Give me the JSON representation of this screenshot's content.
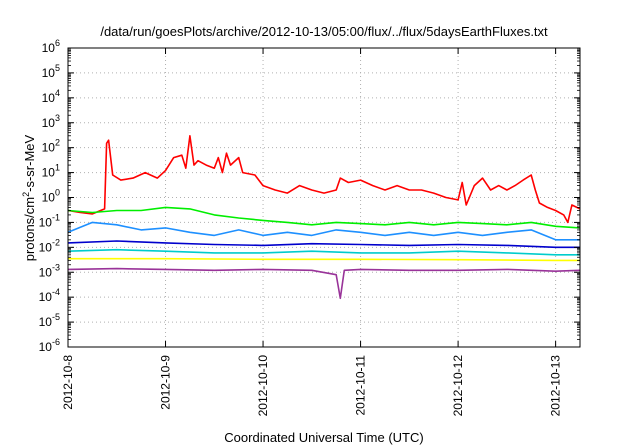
{
  "chart_data": {
    "type": "line",
    "title": "/data/run/goesPlots/archive/2012-10-13/05:00/flux/../flux/5daysEarthFluxes.txt",
    "xlabel": "Coordinated Universal Time (UTC)",
    "ylabel_main": "protons/cm",
    "ylabel_sup": "2",
    "ylabel_tail": "-s-sr-MeV",
    "y_scale": "log",
    "ylim": [
      1e-06,
      1000000.0
    ],
    "xlim": [
      "2012-10-08",
      "2012-10-13 06:00"
    ],
    "grid": true,
    "legend": "none",
    "x_tick_labels": [
      "2012-10-8",
      "2012-10-9",
      "2012-10-10",
      "2012-10-11",
      "2012-10-12",
      "2012-10-13"
    ],
    "y_ticks": [
      {
        "base": "10",
        "exp": "6"
      },
      {
        "base": "10",
        "exp": "5"
      },
      {
        "base": "10",
        "exp": "4"
      },
      {
        "base": "10",
        "exp": "3"
      },
      {
        "base": "10",
        "exp": "2"
      },
      {
        "base": "10",
        "exp": "1"
      },
      {
        "base": "10",
        "exp": "0"
      },
      {
        "base": "10",
        "exp": "-1"
      },
      {
        "base": "10",
        "exp": "-2"
      },
      {
        "base": "10",
        "exp": "-3"
      },
      {
        "base": "10",
        "exp": "-4"
      },
      {
        "base": "10",
        "exp": "-5"
      },
      {
        "base": "10",
        "exp": "-6"
      }
    ],
    "series": [
      {
        "color": "#ff0000",
        "points": [
          [
            "2012-10-08 00:00",
            0.3
          ],
          [
            "2012-10-08 03:00",
            0.25
          ],
          [
            "2012-10-08 06:00",
            0.22
          ],
          [
            "2012-10-08 09:00",
            0.35
          ],
          [
            "2012-10-08 09:30",
            150
          ],
          [
            "2012-10-08 10:00",
            200
          ],
          [
            "2012-10-08 11:00",
            8
          ],
          [
            "2012-10-08 13:00",
            5
          ],
          [
            "2012-10-08 16:00",
            6
          ],
          [
            "2012-10-08 19:00",
            10
          ],
          [
            "2012-10-08 22:00",
            6
          ],
          [
            "2012-10-09 00:00",
            12
          ],
          [
            "2012-10-09 02:00",
            40
          ],
          [
            "2012-10-09 04:00",
            50
          ],
          [
            "2012-10-09 05:00",
            15
          ],
          [
            "2012-10-09 06:00",
            300
          ],
          [
            "2012-10-09 07:00",
            20
          ],
          [
            "2012-10-09 08:00",
            30
          ],
          [
            "2012-10-09 10:00",
            20
          ],
          [
            "2012-10-09 12:00",
            15
          ],
          [
            "2012-10-09 13:00",
            40
          ],
          [
            "2012-10-09 14:00",
            10
          ],
          [
            "2012-10-09 15:00",
            60
          ],
          [
            "2012-10-09 16:00",
            20
          ],
          [
            "2012-10-09 18:00",
            40
          ],
          [
            "2012-10-09 19:00",
            10
          ],
          [
            "2012-10-09 22:00",
            8
          ],
          [
            "2012-10-10 00:00",
            3
          ],
          [
            "2012-10-10 03:00",
            2
          ],
          [
            "2012-10-10 06:00",
            1.5
          ],
          [
            "2012-10-10 09:00",
            3
          ],
          [
            "2012-10-10 12:00",
            2
          ],
          [
            "2012-10-10 15:00",
            1.5
          ],
          [
            "2012-10-10 18:00",
            2
          ],
          [
            "2012-10-10 19:00",
            6
          ],
          [
            "2012-10-10 21:00",
            4
          ],
          [
            "2012-10-11 00:00",
            5
          ],
          [
            "2012-10-11 03:00",
            3
          ],
          [
            "2012-10-11 06:00",
            2
          ],
          [
            "2012-10-11 09:00",
            3
          ],
          [
            "2012-10-11 12:00",
            2
          ],
          [
            "2012-10-11 15:00",
            2
          ],
          [
            "2012-10-11 18:00",
            1.5
          ],
          [
            "2012-10-11 21:00",
            1
          ],
          [
            "2012-10-12 00:00",
            0.8
          ],
          [
            "2012-10-12 01:00",
            4
          ],
          [
            "2012-10-12 02:00",
            0.5
          ],
          [
            "2012-10-12 04:00",
            3
          ],
          [
            "2012-10-12 06:00",
            6
          ],
          [
            "2012-10-12 08:00",
            2
          ],
          [
            "2012-10-12 10:00",
            3
          ],
          [
            "2012-10-12 12:00",
            2
          ],
          [
            "2012-10-12 14:00",
            3
          ],
          [
            "2012-10-12 16:00",
            5
          ],
          [
            "2012-10-12 18:00",
            8
          ],
          [
            "2012-10-12 19:00",
            2
          ],
          [
            "2012-10-12 20:00",
            0.6
          ],
          [
            "2012-10-12 22:00",
            0.4
          ],
          [
            "2012-10-13 00:00",
            0.3
          ],
          [
            "2012-10-13 02:00",
            0.2
          ],
          [
            "2012-10-13 03:00",
            0.1
          ],
          [
            "2012-10-13 04:00",
            0.5
          ],
          [
            "2012-10-13 06:00",
            0.35
          ]
        ]
      },
      {
        "color": "#00ee00",
        "points": [
          [
            "2012-10-08 00:00",
            0.3
          ],
          [
            "2012-10-08 06:00",
            0.25
          ],
          [
            "2012-10-08 12:00",
            0.3
          ],
          [
            "2012-10-08 18:00",
            0.3
          ],
          [
            "2012-10-09 00:00",
            0.4
          ],
          [
            "2012-10-09 06:00",
            0.35
          ],
          [
            "2012-10-09 12:00",
            0.2
          ],
          [
            "2012-10-09 18:00",
            0.15
          ],
          [
            "2012-10-10 00:00",
            0.12
          ],
          [
            "2012-10-10 06:00",
            0.1
          ],
          [
            "2012-10-10 12:00",
            0.08
          ],
          [
            "2012-10-10 18:00",
            0.1
          ],
          [
            "2012-10-11 00:00",
            0.09
          ],
          [
            "2012-10-11 06:00",
            0.08
          ],
          [
            "2012-10-11 12:00",
            0.1
          ],
          [
            "2012-10-11 18:00",
            0.08
          ],
          [
            "2012-10-12 00:00",
            0.1
          ],
          [
            "2012-10-12 06:00",
            0.09
          ],
          [
            "2012-10-12 12:00",
            0.08
          ],
          [
            "2012-10-12 18:00",
            0.1
          ],
          [
            "2012-10-13 00:00",
            0.07
          ],
          [
            "2012-10-13 06:00",
            0.06
          ]
        ]
      },
      {
        "color": "#1e90ff",
        "points": [
          [
            "2012-10-08 00:00",
            0.04
          ],
          [
            "2012-10-08 06:00",
            0.1
          ],
          [
            "2012-10-08 12:00",
            0.08
          ],
          [
            "2012-10-08 18:00",
            0.05
          ],
          [
            "2012-10-09 00:00",
            0.06
          ],
          [
            "2012-10-09 06:00",
            0.04
          ],
          [
            "2012-10-09 12:00",
            0.03
          ],
          [
            "2012-10-09 18:00",
            0.05
          ],
          [
            "2012-10-10 00:00",
            0.03
          ],
          [
            "2012-10-10 06:00",
            0.04
          ],
          [
            "2012-10-10 12:00",
            0.03
          ],
          [
            "2012-10-10 18:00",
            0.05
          ],
          [
            "2012-10-11 00:00",
            0.04
          ],
          [
            "2012-10-11 06:00",
            0.03
          ],
          [
            "2012-10-11 12:00",
            0.04
          ],
          [
            "2012-10-11 18:00",
            0.03
          ],
          [
            "2012-10-12 00:00",
            0.04
          ],
          [
            "2012-10-12 06:00",
            0.03
          ],
          [
            "2012-10-12 12:00",
            0.04
          ],
          [
            "2012-10-12 18:00",
            0.05
          ],
          [
            "2012-10-13 00:00",
            0.02
          ],
          [
            "2012-10-13 06:00",
            0.02
          ]
        ]
      },
      {
        "color": "#00cccc",
        "points": [
          [
            "2012-10-08 00:00",
            0.007
          ],
          [
            "2012-10-08 12:00",
            0.008
          ],
          [
            "2012-10-09 00:00",
            0.007
          ],
          [
            "2012-10-09 12:00",
            0.006
          ],
          [
            "2012-10-10 00:00",
            0.006
          ],
          [
            "2012-10-10 12:00",
            0.007
          ],
          [
            "2012-10-11 00:00",
            0.006
          ],
          [
            "2012-10-11 12:00",
            0.006
          ],
          [
            "2012-10-12 00:00",
            0.007
          ],
          [
            "2012-10-12 12:00",
            0.006
          ],
          [
            "2012-10-13 00:00",
            0.005
          ],
          [
            "2012-10-13 06:00",
            0.005
          ]
        ]
      },
      {
        "color": "#0000cc",
        "points": [
          [
            "2012-10-08 00:00",
            0.015
          ],
          [
            "2012-10-08 12:00",
            0.018
          ],
          [
            "2012-10-09 00:00",
            0.015
          ],
          [
            "2012-10-09 12:00",
            0.013
          ],
          [
            "2012-10-10 00:00",
            0.012
          ],
          [
            "2012-10-10 12:00",
            0.014
          ],
          [
            "2012-10-11 00:00",
            0.013
          ],
          [
            "2012-10-11 12:00",
            0.012
          ],
          [
            "2012-10-12 00:00",
            0.013
          ],
          [
            "2012-10-12 12:00",
            0.012
          ],
          [
            "2012-10-13 00:00",
            0.01
          ],
          [
            "2012-10-13 06:00",
            0.01
          ]
        ]
      },
      {
        "color": "#ffff00",
        "points": [
          [
            "2012-10-08 00:00",
            0.0035
          ],
          [
            "2012-10-09 00:00",
            0.0035
          ],
          [
            "2012-10-10 00:00",
            0.0033
          ],
          [
            "2012-10-11 00:00",
            0.0033
          ],
          [
            "2012-10-12 00:00",
            0.0032
          ],
          [
            "2012-10-13 00:00",
            0.003
          ],
          [
            "2012-10-13 06:00",
            0.003
          ]
        ]
      },
      {
        "color": "#993399",
        "points": [
          [
            "2012-10-08 00:00",
            0.0013
          ],
          [
            "2012-10-08 12:00",
            0.0014
          ],
          [
            "2012-10-09 00:00",
            0.0013
          ],
          [
            "2012-10-09 12:00",
            0.0012
          ],
          [
            "2012-10-10 00:00",
            0.0013
          ],
          [
            "2012-10-10 12:00",
            0.0012
          ],
          [
            "2012-10-10 18:00",
            0.0008
          ],
          [
            "2012-10-10 19:00",
            9e-05
          ],
          [
            "2012-10-10 20:00",
            0.0012
          ],
          [
            "2012-10-11 00:00",
            0.0013
          ],
          [
            "2012-10-11 12:00",
            0.0012
          ],
          [
            "2012-10-12 00:00",
            0.0012
          ],
          [
            "2012-10-12 12:00",
            0.0013
          ],
          [
            "2012-10-13 00:00",
            0.0011
          ],
          [
            "2012-10-13 06:00",
            0.0012
          ]
        ]
      }
    ]
  }
}
